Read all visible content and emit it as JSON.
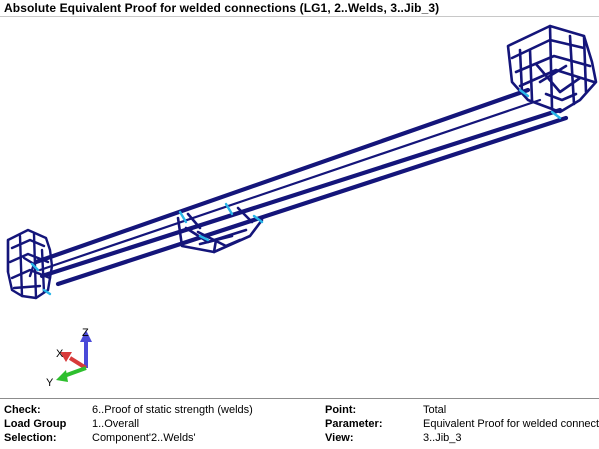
{
  "window": {
    "title": "Absolute Equivalent Proof for welded connections (LG1, 2..Welds, 3..Jib_3)"
  },
  "axes": {
    "z_label": "Z",
    "x_label": "X",
    "y_label": "Y",
    "z_color": "#4a4ad8",
    "x_color": "#d83a3a",
    "y_color": "#2ebf2e"
  },
  "model": {
    "structure_color": "#14157a",
    "weld_highlight_color": "#29b6e8"
  },
  "info": {
    "rows": [
      {
        "label": "Check:",
        "value": "6..Proof of static strength (welds)",
        "label2": "Point:",
        "value2": "Total"
      },
      {
        "label": "Load Group",
        "value": "1..Overall",
        "label2": "Parameter:",
        "value2": "Equivalent Proof for welded connections"
      },
      {
        "label": "Selection:",
        "value": "Component'2..Welds'",
        "label2": "View:",
        "value2": "3..Jib_3"
      }
    ]
  }
}
